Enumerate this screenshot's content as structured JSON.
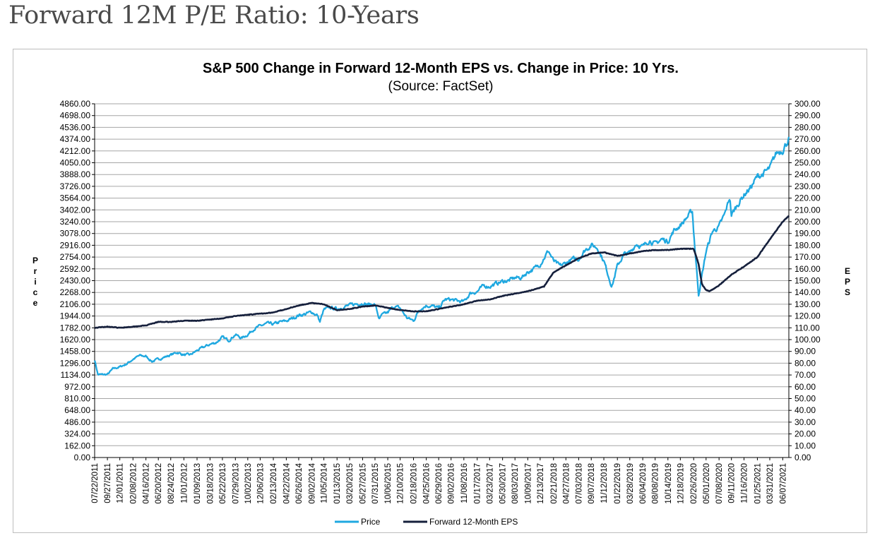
{
  "page": {
    "heading": "Forward 12M P/E Ratio: 10-Years"
  },
  "chart_data": {
    "type": "line",
    "title": "S&P 500 Change in Forward 12-Month EPS vs. Change in Price: 10 Yrs.",
    "subtitle": "(Source: FactSet)",
    "ylabel": "Price",
    "y2label": "EPS",
    "ylim": [
      0,
      4860
    ],
    "y2lim": [
      0,
      300
    ],
    "grid": true,
    "legend_position": "bottom",
    "colors": {
      "price": "#1fa8e0",
      "eps": "#16203c",
      "grid": "#a6a6a6"
    },
    "y_ticks": [
      "4860.00",
      "4698.00",
      "4536.00",
      "4374.00",
      "4212.00",
      "4050.00",
      "3888.00",
      "3726.00",
      "3564.00",
      "3402.00",
      "3240.00",
      "3078.00",
      "2916.00",
      "2754.00",
      "2592.00",
      "2430.00",
      "2268.00",
      "2106.00",
      "1944.00",
      "1782.00",
      "1620.00",
      "1458.00",
      "1296.00",
      "1134.00",
      "972.00",
      "810.00",
      "648.00",
      "486.00",
      "324.00",
      "162.00",
      "0.00"
    ],
    "y2_ticks": [
      "300.00",
      "290.00",
      "280.00",
      "270.00",
      "260.00",
      "250.00",
      "240.00",
      "230.00",
      "220.00",
      "210.00",
      "200.00",
      "190.00",
      "180.00",
      "170.00",
      "160.00",
      "150.00",
      "140.00",
      "130.00",
      "120.00",
      "110.00",
      "100.00",
      "90.00",
      "80.00",
      "70.00",
      "60.00",
      "50.00",
      "40.00",
      "30.00",
      "20.00",
      "10.00",
      "0.00"
    ],
    "x_ticks": [
      "07/22/2011",
      "09/27/2011",
      "12/01/2011",
      "02/08/2012",
      "04/16/2012",
      "06/20/2012",
      "08/24/2012",
      "11/01/2012",
      "01/09/2013",
      "03/18/2013",
      "05/22/2013",
      "07/29/2013",
      "10/02/2013",
      "12/06/2013",
      "02/13/2014",
      "04/22/2014",
      "06/26/2014",
      "09/02/2014",
      "11/05/2014",
      "01/13/2015",
      "03/20/2015",
      "05/27/2015",
      "07/31/2015",
      "10/06/2015",
      "12/10/2015",
      "02/18/2016",
      "04/25/2016",
      "06/29/2016",
      "09/02/2016",
      "11/08/2016",
      "01/17/2017",
      "03/23/2017",
      "05/30/2017",
      "08/03/2017",
      "10/09/2017",
      "12/13/2017",
      "02/21/2018",
      "04/27/2018",
      "07/03/2018",
      "09/07/2018",
      "11/12/2018",
      "01/22/2019",
      "03/28/2019",
      "06/04/2019",
      "08/08/2019",
      "10/14/2019",
      "12/18/2019",
      "02/26/2020",
      "05/01/2020",
      "07/08/2020",
      "09/11/2020",
      "11/16/2020",
      "01/25/2021",
      "03/31/2021",
      "06/07/2021"
    ],
    "series": [
      {
        "name": "Price",
        "axis": "left",
        "x": [
          "07/22/2011",
          "08/08/2011",
          "09/27/2011",
          "10/27/2011",
          "12/01/2011",
          "01/05/2012",
          "02/08/2012",
          "03/13/2012",
          "04/16/2012",
          "05/18/2012",
          "06/20/2012",
          "07/23/2012",
          "08/24/2012",
          "09/27/2012",
          "11/01/2012",
          "12/05/2012",
          "01/09/2013",
          "02/12/2013",
          "03/18/2013",
          "04/19/2013",
          "05/22/2013",
          "06/24/2013",
          "07/29/2013",
          "08/30/2013",
          "10/02/2013",
          "11/04/2013",
          "12/06/2013",
          "01/10/2014",
          "02/13/2014",
          "03/18/2014",
          "04/22/2014",
          "05/23/2014",
          "06/26/2014",
          "07/30/2014",
          "09/02/2014",
          "10/03/2014",
          "10/15/2014",
          "11/05/2014",
          "12/09/2014",
          "01/13/2015",
          "02/16/2015",
          "03/20/2015",
          "04/23/2015",
          "05/27/2015",
          "06/29/2015",
          "07/31/2015",
          "08/24/2015",
          "09/02/2015",
          "10/06/2015",
          "11/09/2015",
          "12/10/2015",
          "01/14/2016",
          "02/18/2016",
          "03/22/2016",
          "04/25/2016",
          "05/27/2016",
          "06/29/2016",
          "08/01/2016",
          "09/02/2016",
          "10/06/2016",
          "11/08/2016",
          "12/13/2016",
          "01/17/2017",
          "02/20/2017",
          "03/23/2017",
          "04/26/2017",
          "05/30/2017",
          "07/01/2017",
          "08/03/2017",
          "09/06/2017",
          "10/09/2017",
          "11/10/2017",
          "12/13/2017",
          "01/26/2018",
          "02/21/2018",
          "03/26/2018",
          "04/27/2018",
          "05/30/2018",
          "07/03/2018",
          "08/06/2018",
          "09/07/2018",
          "10/10/2018",
          "11/12/2018",
          "12/24/2018",
          "01/22/2019",
          "02/25/2019",
          "03/28/2019",
          "05/01/2019",
          "06/04/2019",
          "07/08/2019",
          "08/08/2019",
          "09/11/2019",
          "10/14/2019",
          "11/15/2019",
          "12/18/2019",
          "02/19/2020",
          "02/26/2020",
          "03/23/2020",
          "05/01/2020",
          "06/04/2020",
          "07/08/2020",
          "08/10/2020",
          "09/02/2020",
          "09/11/2020",
          "10/14/2020",
          "11/16/2020",
          "12/18/2020",
          "01/25/2021",
          "02/26/2021",
          "03/31/2021",
          "05/04/2021",
          "06/07/2021",
          "07/09/2021"
        ],
        "values": [
          1345,
          1140,
          1140,
          1220,
          1245,
          1285,
          1350,
          1400,
          1390,
          1320,
          1350,
          1380,
          1410,
          1445,
          1410,
          1410,
          1470,
          1515,
          1555,
          1580,
          1650,
          1610,
          1690,
          1640,
          1690,
          1770,
          1805,
          1840,
          1830,
          1860,
          1875,
          1910,
          1955,
          1970,
          2000,
          1950,
          1862,
          2030,
          2060,
          2040,
          2070,
          2090,
          2110,
          2120,
          2100,
          2105,
          1890,
          1950,
          1990,
          2080,
          2050,
          1920,
          1880,
          2040,
          2090,
          2080,
          2050,
          2170,
          2170,
          2150,
          2140,
          2260,
          2280,
          2360,
          2350,
          2390,
          2420,
          2430,
          2470,
          2470,
          2550,
          2590,
          2660,
          2840,
          2700,
          2630,
          2670,
          2720,
          2730,
          2850,
          2920,
          2880,
          2700,
          2350,
          2630,
          2790,
          2810,
          2940,
          2890,
          2990,
          2930,
          3000,
          2970,
          3120,
          3190,
          3386,
          3100,
          2237,
          2830,
          3110,
          3170,
          3360,
          3580,
          3330,
          3480,
          3610,
          3700,
          3860,
          3900,
          3970,
          4180,
          4230,
          4380
        ]
      },
      {
        "name": "Forward 12-Month EPS",
        "axis": "right",
        "x": [
          "07/22/2011",
          "09/27/2011",
          "12/01/2011",
          "02/08/2012",
          "04/16/2012",
          "06/20/2012",
          "08/24/2012",
          "11/01/2012",
          "01/09/2013",
          "03/18/2013",
          "05/22/2013",
          "07/29/2013",
          "10/02/2013",
          "12/06/2013",
          "02/13/2014",
          "04/22/2014",
          "06/26/2014",
          "09/02/2014",
          "11/05/2014",
          "01/13/2015",
          "03/20/2015",
          "05/27/2015",
          "07/31/2015",
          "10/06/2015",
          "12/10/2015",
          "02/18/2016",
          "04/25/2016",
          "06/29/2016",
          "09/02/2016",
          "11/08/2016",
          "01/17/2017",
          "03/23/2017",
          "05/30/2017",
          "08/03/2017",
          "10/09/2017",
          "12/13/2017",
          "01/02/2018",
          "02/21/2018",
          "04/27/2018",
          "07/03/2018",
          "09/07/2018",
          "11/12/2018",
          "01/22/2019",
          "03/28/2019",
          "06/04/2019",
          "08/08/2019",
          "10/14/2019",
          "12/18/2019",
          "02/26/2020",
          "03/23/2020",
          "04/09/2020",
          "05/01/2020",
          "05/20/2020",
          "07/08/2020",
          "09/11/2020",
          "11/16/2020",
          "01/25/2021",
          "03/31/2021",
          "06/07/2021",
          "07/09/2021"
        ],
        "values": [
          110,
          111,
          110,
          111,
          112,
          115,
          115,
          116,
          116,
          117,
          118,
          120,
          121,
          122,
          123,
          126,
          129,
          131,
          130,
          125,
          126,
          128,
          129,
          127,
          125,
          124,
          124,
          126,
          128,
          130,
          133,
          134,
          137,
          139,
          141,
          144,
          145,
          157,
          163,
          169,
          173,
          174,
          171,
          173,
          175,
          176,
          176,
          177,
          177,
          164,
          147,
          142,
          141,
          146,
          155,
          162,
          170,
          185,
          200,
          205
        ]
      }
    ]
  }
}
